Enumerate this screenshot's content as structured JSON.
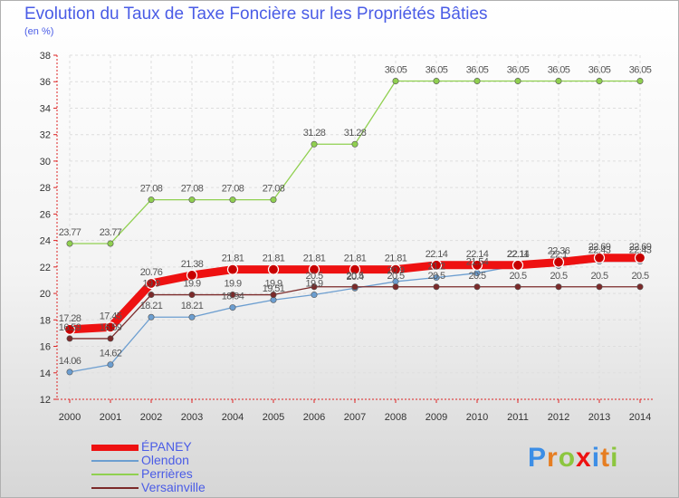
{
  "header": {
    "title": "Evolution du Taux de Taxe Foncière sur les Propriétés Bâties",
    "unit": "(en %)"
  },
  "chart_data": {
    "type": "line",
    "title": "Evolution du Taux de Taxe Foncière sur les Propriétés Bâties",
    "ylabel": "(en %)",
    "xlabel": "",
    "ylim": [
      12,
      38
    ],
    "yticks": [
      12,
      14,
      16,
      18,
      20,
      22,
      24,
      26,
      28,
      30,
      32,
      34,
      36,
      38
    ],
    "x": [
      "2000",
      "2001",
      "2002",
      "2003",
      "2004",
      "2005",
      "2006",
      "2007",
      "2008",
      "2009",
      "2010",
      "2011",
      "2012",
      "2013",
      "2014"
    ],
    "grid": true,
    "legend_position": "bottom-left",
    "series": [
      {
        "name": "Olendon",
        "color": "#6c9ed0",
        "values": [
          14.06,
          14.62,
          18.21,
          18.21,
          18.94,
          19.51,
          19.9,
          20.4,
          20.9,
          21.2,
          21.54,
          22.11,
          22.1,
          22.43,
          22.43
        ],
        "labels": [
          "14.06",
          "14.62",
          "18.21",
          "18.21",
          "18.94",
          "19.51",
          "19.9",
          "20.4",
          "20.9",
          "21.2",
          "21.54",
          "22.11",
          "22.1",
          "22.43",
          "22.43"
        ]
      },
      {
        "name": "Versainville",
        "color": "#7b2a2a",
        "values": [
          16.59,
          16.59,
          19.9,
          19.9,
          19.9,
          19.9,
          20.5,
          20.5,
          20.5,
          20.5,
          20.5,
          20.5,
          20.5,
          20.5,
          20.5
        ],
        "labels": [
          "16.59",
          "16.59",
          "19.9",
          "19.9",
          "19.9",
          "19.9",
          "20.5",
          "20.5",
          "20.5",
          "20.5",
          "20.5",
          "20.5",
          "20.5",
          "20.5",
          "20.5"
        ]
      },
      {
        "name": "Perrières",
        "color": "#90d050",
        "values": [
          23.77,
          23.77,
          27.08,
          27.08,
          27.08,
          27.08,
          31.28,
          31.28,
          36.05,
          36.05,
          36.05,
          36.05,
          36.05,
          36.05,
          36.05
        ],
        "labels": [
          "23.77",
          "23.77",
          "27.08",
          "27.08",
          "27.08",
          "27.08",
          "31.28",
          "31.28",
          "36.05",
          "36.05",
          "36.05",
          "36.05",
          "36.05",
          "36.05",
          "36.05"
        ]
      },
      {
        "name": "ÉPANEY",
        "color": "#ee1111",
        "values": [
          17.28,
          17.45,
          20.76,
          21.38,
          21.81,
          21.81,
          21.81,
          21.81,
          21.81,
          22.14,
          22.14,
          22.14,
          22.36,
          22.69,
          22.69
        ],
        "labels": [
          "17.28",
          "17.45",
          "20.76",
          "21.38",
          "21.81",
          "21.81",
          "21.81",
          "21.81",
          "21.81",
          "22.14",
          "22.14",
          "22.14",
          "22.36",
          "22.69",
          "22.69"
        ]
      }
    ]
  },
  "legend": {
    "items": [
      {
        "label": "ÉPANEY",
        "color": "#ee1111"
      },
      {
        "label": "Olendon",
        "color": "#6c9ed0"
      },
      {
        "label": "Perrières",
        "color": "#90d050"
      },
      {
        "label": "Versainville",
        "color": "#7b2a2a"
      }
    ]
  },
  "logo": {
    "text": "Proxiti",
    "colors": [
      "#3c8ee6",
      "#e67e22",
      "#8cc63f",
      "#ee1111",
      "#3c8ee6",
      "#e67e22",
      "#8cc63f"
    ]
  }
}
